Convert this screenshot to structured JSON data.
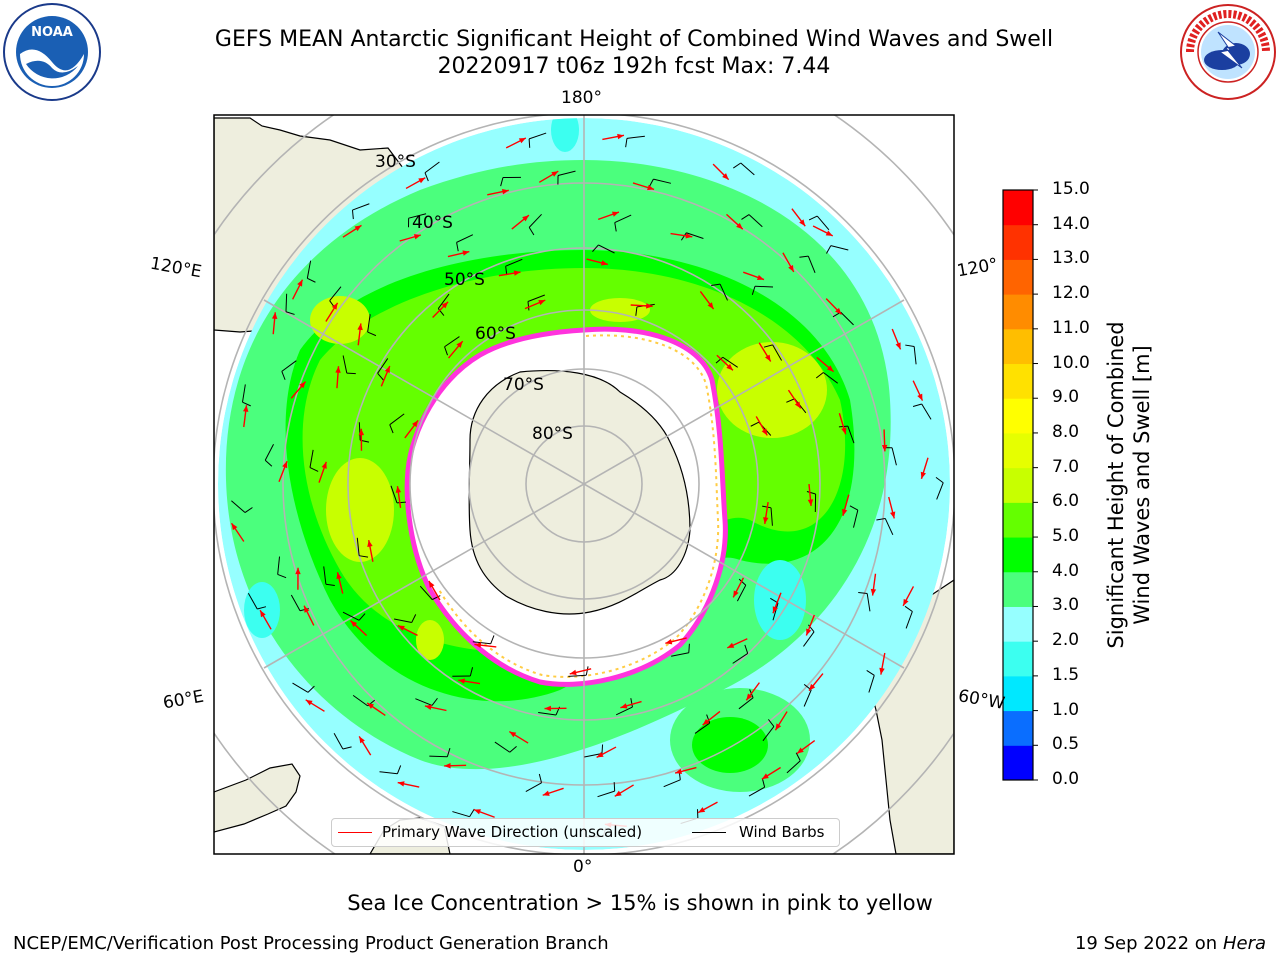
{
  "header": {
    "title_line1": "GEFS MEAN Antarctic Significant Height of Combined Wind Waves and Swell",
    "title_line2": "20220917 t06z 192h fcst   Max: 7.44"
  },
  "logos": {
    "left": "noaa-logo",
    "right": "nws-logo"
  },
  "map": {
    "projection": "south-polar-stereographic",
    "longitude_labels": {
      "top": "180°",
      "bottom": "0°",
      "left_upper": "120°E",
      "left_lower": "60°E",
      "right_upper": "120°",
      "right_lower": "60°W"
    },
    "latitude_labels": [
      "30°S",
      "40°S",
      "50°S",
      "60°S",
      "70°S",
      "80°S"
    ],
    "colors": {
      "land": "#eeeede",
      "ice_interior": "#ffffff",
      "sea_ice_edge": "#ff33dd",
      "graticule": "#b4b4b4"
    }
  },
  "legend": {
    "wave_label": "Primary Wave Direction (unscaled)",
    "wave_color": "#ff0000",
    "wind_label": "Wind Barbs",
    "wind_color": "#000000"
  },
  "colorbar": {
    "title_line1": "Significant Height of Combined",
    "title_line2": "Wind Waves and Swell [m]",
    "ticks": [
      "0.0",
      "0.5",
      "1.0",
      "1.5",
      "2.0",
      "3.0",
      "4.0",
      "5.0",
      "6.0",
      "7.0",
      "8.0",
      "9.0",
      "10.0",
      "11.0",
      "12.0",
      "13.0",
      "14.0",
      "15.0"
    ],
    "colors": [
      "#0000ff",
      "#0a6eff",
      "#00e8ff",
      "#3cfff0",
      "#96ffff",
      "#4bff7d",
      "#00ff00",
      "#64ff00",
      "#c8ff00",
      "#e6ff00",
      "#ffff00",
      "#ffe100",
      "#ffbe00",
      "#ff8c00",
      "#ff6400",
      "#ff3200",
      "#ff0000"
    ]
  },
  "notes": {
    "sea_ice": "Sea Ice Concentration > 15% is shown in pink to yellow",
    "credit_left": "NCEP/EMC/Verification Post Processing Product Generation Branch",
    "credit_date": "19 Sep 2022 on",
    "credit_host": "Hera"
  }
}
